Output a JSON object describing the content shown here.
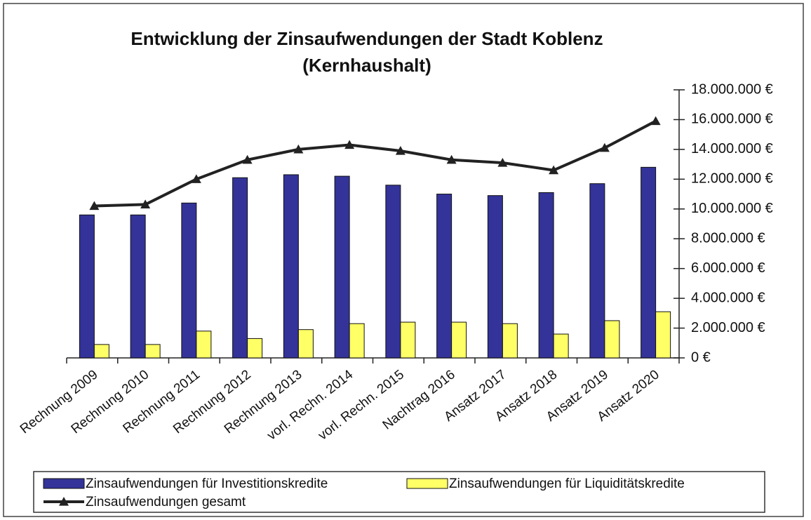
{
  "chart_data": {
    "type": "bar",
    "title": [
      "Entwicklung der Zinsaufwendungen der Stadt Koblenz",
      "(Kernhaushalt)"
    ],
    "categories": [
      "Rechnung 2009",
      "Rechnung 2010",
      "Rechnung 2011",
      "Rechnung 2012",
      "Rechnung 2013",
      "vorl. Rechn. 2014",
      "vorl. Rechn. 2015",
      "Nachtrag 2016",
      "Ansatz 2017",
      "Ansatz 2018",
      "Ansatz 2019",
      "Ansatz 2020"
    ],
    "series": [
      {
        "name": "Zinsaufwendungen für Investitionskredite",
        "type": "bar",
        "color": "#333399",
        "values": [
          9600000,
          9600000,
          10400000,
          12100000,
          12300000,
          12200000,
          11600000,
          11000000,
          10900000,
          11100000,
          11700000,
          12800000
        ]
      },
      {
        "name": "Zinsaufwendungen für Liquiditätskredite",
        "type": "bar",
        "color": "#ffff66",
        "values": [
          900000,
          900000,
          1800000,
          1300000,
          1900000,
          2300000,
          2400000,
          2400000,
          2300000,
          1600000,
          2500000,
          3100000
        ]
      },
      {
        "name": "Zinsaufwendungen gesamt",
        "type": "line",
        "color": "#222222",
        "values": [
          10200000,
          10300000,
          12000000,
          13300000,
          14000000,
          14300000,
          13900000,
          13300000,
          13100000,
          12600000,
          14100000,
          15900000
        ]
      }
    ],
    "ylim": [
      0,
      18000000
    ],
    "yticks": [
      {
        "value": 0,
        "label": "0 €"
      },
      {
        "value": 2000000,
        "label": "2.000.000 €"
      },
      {
        "value": 4000000,
        "label": "4.000.000 €"
      },
      {
        "value": 6000000,
        "label": "6.000.000 €"
      },
      {
        "value": 8000000,
        "label": "8.000.000 €"
      },
      {
        "value": 10000000,
        "label": "10.000.000 €"
      },
      {
        "value": 12000000,
        "label": "12.000.000 €"
      },
      {
        "value": 14000000,
        "label": "14.000.000 €"
      },
      {
        "value": 16000000,
        "label": "16.000.000 €"
      },
      {
        "value": 18000000,
        "label": "18.000.000 €"
      }
    ],
    "y_axis_position": "right",
    "grid": false,
    "legend": "bottom"
  }
}
